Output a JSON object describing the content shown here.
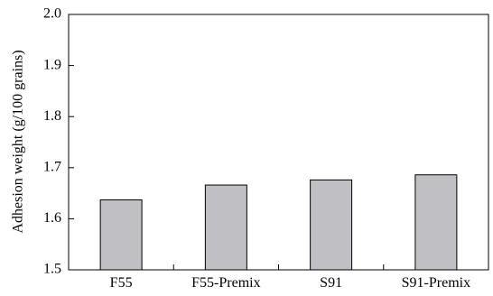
{
  "chart_data": {
    "type": "bar",
    "title": "",
    "xlabel": "",
    "ylabel": "Adhesion weight (g/100 grains)",
    "categories": [
      "F55",
      "F55-Premix",
      "S91",
      "S91-Premix"
    ],
    "values": [
      1.637,
      1.666,
      1.676,
      1.686
    ],
    "ylim": [
      1.5,
      2.0
    ],
    "yticks": [
      "1.5",
      "1.6",
      "1.7",
      "1.8",
      "1.9",
      "2.0"
    ],
    "grid": false,
    "bar_color": "#c0c0c4",
    "bar_edge_color": "#000000"
  }
}
